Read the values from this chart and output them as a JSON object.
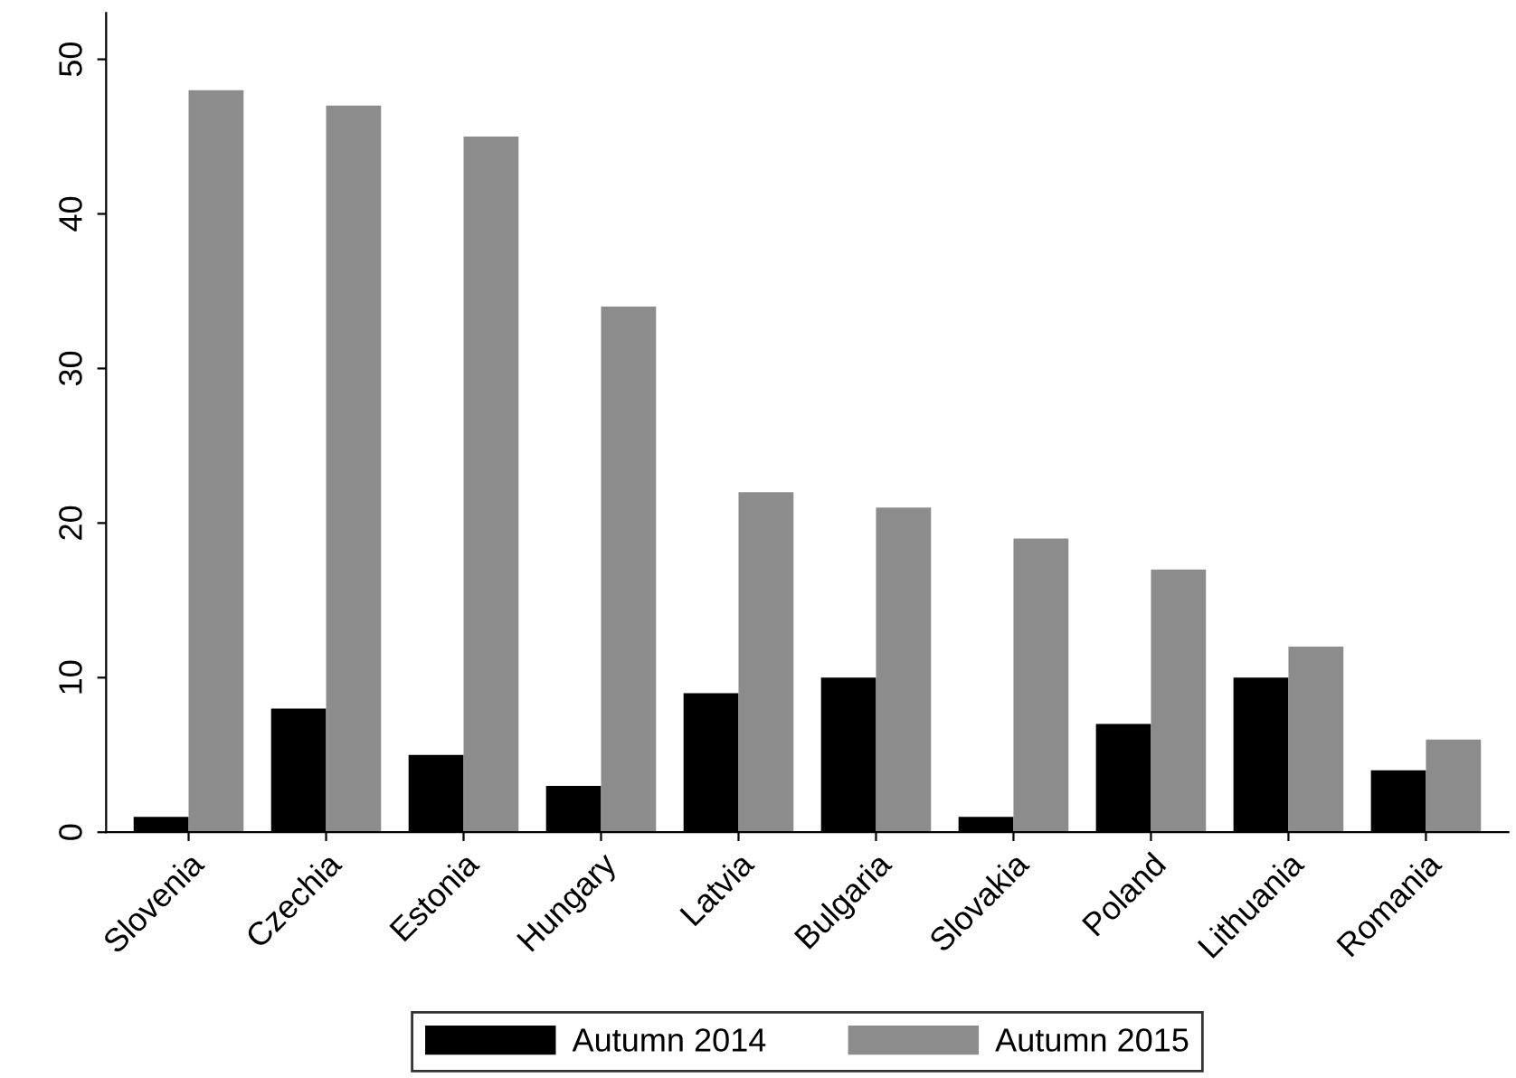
{
  "chart_data": {
    "type": "bar",
    "categories": [
      "Slovenia",
      "Czechia",
      "Estonia",
      "Hungary",
      "Latvia",
      "Bulgaria",
      "Slovakia",
      "Poland",
      "Lithuania",
      "Romania"
    ],
    "series": [
      {
        "name": "Autumn 2014",
        "color": "#000000",
        "values": [
          1,
          8,
          5,
          3,
          9,
          10,
          1,
          7,
          10,
          4
        ]
      },
      {
        "name": "Autumn 2015",
        "color": "#8c8c8c",
        "values": [
          48,
          47,
          45,
          34,
          22,
          21,
          19,
          17,
          12,
          6
        ]
      }
    ],
    "ylim": [
      0,
      53
    ],
    "yticks": [
      0,
      10,
      20,
      30,
      40,
      50
    ],
    "grid": false,
    "legend": "bottom"
  }
}
